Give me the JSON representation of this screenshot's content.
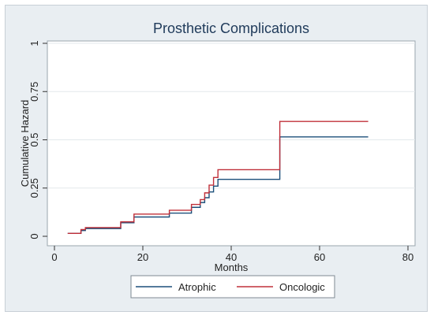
{
  "chart_data": {
    "type": "line",
    "title": "Prosthetic Complications",
    "xlabel": "Months",
    "ylabel": "Cumulative Hazard",
    "xlim": [
      0,
      80
    ],
    "ylim": [
      0,
      1
    ],
    "x_ticks": [
      "0",
      "20",
      "40",
      "60",
      "80"
    ],
    "y_ticks": [
      "0",
      "0.25",
      "0.5",
      "0.75",
      "1"
    ],
    "grid": true,
    "legend_position": "bottom",
    "series": [
      {
        "name": "Atrophic",
        "color": "#1b4f7a",
        "step": true,
        "x": [
          3,
          6,
          7,
          15,
          18,
          26,
          31,
          33,
          34,
          35,
          36,
          37,
          51,
          71
        ],
        "y": [
          0.015,
          0.03,
          0.04,
          0.07,
          0.1,
          0.12,
          0.15,
          0.175,
          0.2,
          0.23,
          0.26,
          0.295,
          0.515,
          0.515
        ]
      },
      {
        "name": "Oncologic",
        "color": "#c0303a",
        "step": true,
        "x": [
          3,
          6,
          7,
          15,
          18,
          26,
          31,
          33,
          34,
          35,
          36,
          37,
          51,
          71
        ],
        "y": [
          0.015,
          0.035,
          0.045,
          0.075,
          0.115,
          0.135,
          0.165,
          0.19,
          0.225,
          0.265,
          0.305,
          0.345,
          0.595,
          0.595
        ]
      }
    ]
  }
}
